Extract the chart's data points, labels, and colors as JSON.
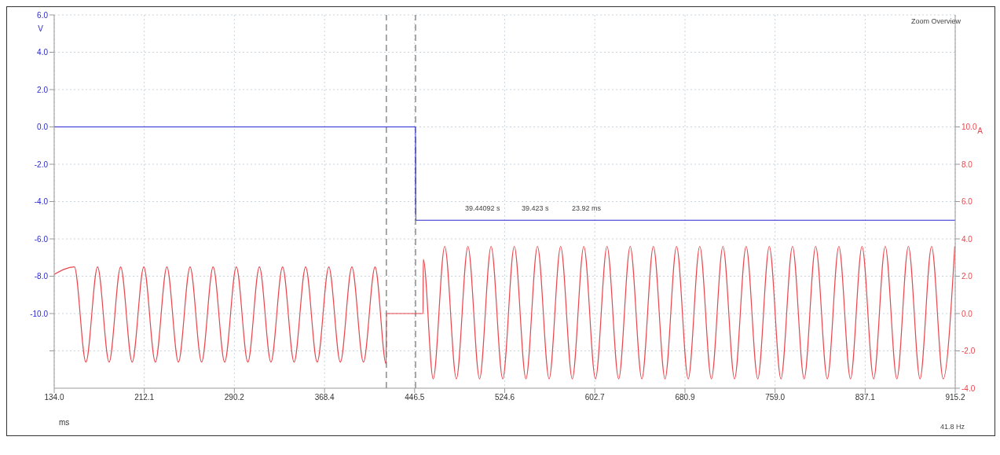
{
  "chart_data": {
    "type": "line",
    "ylabel": "V",
    "y2label": "A",
    "xlabel": "ms",
    "xlim": [
      134.0,
      915.2
    ],
    "xticks": [
      {
        "value": 134.0,
        "label": "134.0"
      },
      212.1,
      290.2,
      368.4,
      446.5,
      524.6,
      602.7,
      680.9,
      {
        "value": 759.0,
        "label": "759.0"
      },
      837.1,
      915.2
    ],
    "ylim": [
      -14,
      6
    ],
    "yticks": [
      {
        "value": 6,
        "label": "6.0"
      },
      {
        "value": 4,
        "label": "4.0"
      },
      {
        "value": 2,
        "label": "2.0"
      },
      {
        "value": 0,
        "label": "0.0"
      },
      {
        "value": -2,
        "label": "-2.0"
      },
      {
        "value": -4,
        "label": "-4.0"
      },
      {
        "value": -6,
        "label": "-6.0"
      },
      {
        "value": -8,
        "label": "-8.0"
      },
      {
        "value": -10,
        "label": "-10.0"
      },
      {
        "value": -12,
        "label": null
      }
    ],
    "y2lim": [
      -4,
      16
    ],
    "y2ticks": [
      {
        "value": 10,
        "label": "10.0"
      },
      {
        "value": 8,
        "label": "8.0"
      },
      {
        "value": 6,
        "label": "6.0"
      },
      {
        "value": 4,
        "label": "4.0"
      },
      {
        "value": 2,
        "label": "2.0"
      },
      {
        "value": 0,
        "label": "0.0"
      },
      {
        "value": -2,
        "label": "-2.0"
      },
      {
        "value": -4,
        "label": "-4.0"
      }
    ],
    "grid": true,
    "legend": false,
    "marker": "none",
    "line_style": "solid",
    "ref_lines": [
      {
        "axis": "x",
        "value": 422.0,
        "color": "#707070",
        "line_style": "dashed"
      },
      {
        "axis": "x",
        "value": 447.3,
        "color": "#707070",
        "line_style": "dashed"
      }
    ],
    "annotations": [
      "Zoom Overview",
      "39.44092 s",
      "39.423 s",
      "23.92 ms",
      "41.8 Hz"
    ],
    "series": [
      {
        "color": "#2a2ad0",
        "x": [
          134.0,
          447.3,
          447.4,
          915.2
        ],
        "values": [
          0.0,
          0.0,
          -5.0,
          -5.0
        ]
      },
      {
        "color": "#e8474e",
        "axis": "y2",
        "x": [
          134.0,
          151.5,
          161.5,
          171.6,
          181.6,
          191.6,
          201.6,
          211.7,
          221.7,
          231.7,
          241.7,
          251.8,
          261.8,
          271.8,
          281.8,
          291.9,
          301.9,
          311.9,
          321.9,
          332.0,
          342.0,
          352.0,
          362.0,
          372.1,
          382.1,
          392.1,
          402.1,
          412.2,
          421.8,
          422.0,
          453.8,
          454.0,
          462.6,
          472.6,
          482.7,
          492.7,
          502.8,
          512.8,
          522.9,
          532.9,
          543.0,
          553.0,
          563.1,
          573.1,
          583.2,
          593.2,
          603.3,
          613.3,
          623.4,
          633.4,
          643.5,
          653.5,
          663.6,
          673.6,
          683.7,
          693.7,
          703.8,
          713.8,
          723.9,
          733.9,
          744.0,
          754.0,
          764.1,
          774.1,
          784.2,
          794.2,
          804.3,
          814.3,
          824.4,
          834.4,
          844.5,
          854.5,
          864.6,
          874.6,
          884.7,
          894.7,
          904.8,
          914.8
        ],
        "values": [
          2.1,
          2.5,
          -2.6,
          2.5,
          -2.6,
          2.5,
          -2.6,
          2.5,
          -2.6,
          2.5,
          -2.6,
          2.5,
          -2.6,
          2.5,
          -2.6,
          2.5,
          -2.6,
          2.5,
          -2.6,
          2.5,
          -2.6,
          2.5,
          -2.6,
          2.5,
          -2.6,
          2.5,
          -2.6,
          2.5,
          -2.7,
          0.0,
          0.0,
          2.9,
          -3.5,
          3.6,
          -3.5,
          3.6,
          -3.5,
          3.6,
          -3.5,
          3.6,
          -3.5,
          3.6,
          -3.5,
          3.6,
          -3.5,
          3.6,
          -3.5,
          3.6,
          -3.5,
          3.6,
          -3.5,
          3.6,
          -3.5,
          3.6,
          -3.5,
          3.6,
          -3.5,
          3.6,
          -3.5,
          3.6,
          -3.5,
          3.6,
          -3.5,
          3.6,
          -3.5,
          3.6,
          -3.5,
          3.6,
          -3.5,
          3.6,
          -3.5,
          3.6,
          -3.5,
          3.6,
          -3.5,
          3.6,
          -3.5,
          3.6
        ]
      }
    ]
  }
}
